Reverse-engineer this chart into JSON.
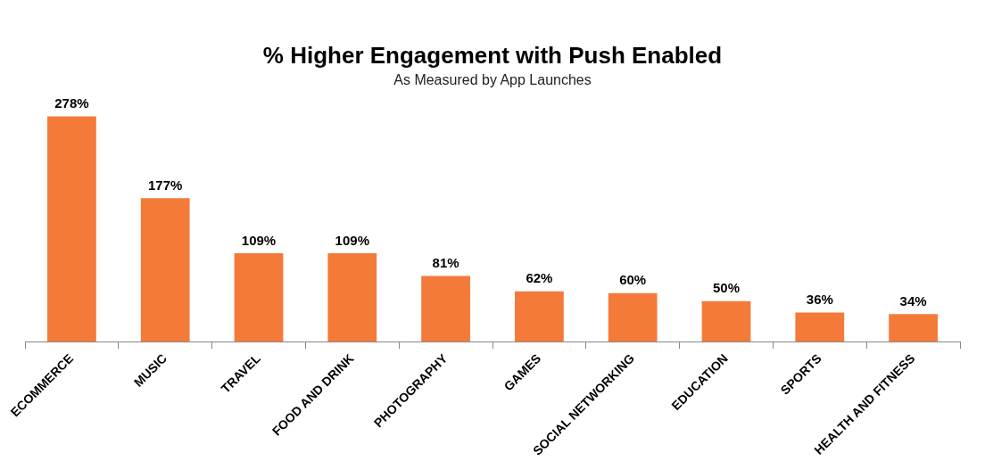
{
  "chart_data": {
    "type": "bar",
    "title": "% Higher Engagement with Push Enabled",
    "subtitle": "As Measured by App Launches",
    "categories": [
      "ECOMMERCE",
      "MUSIC",
      "TRAVEL",
      "FOOD AND DRINK",
      "PHOTOGRAPHY",
      "GAMES",
      "SOCIAL NETWORKING",
      "EDUCATION",
      "SPORTS",
      "HEALTH AND FITNESS"
    ],
    "values": [
      278,
      177,
      109,
      109,
      81,
      62,
      60,
      50,
      36,
      34
    ],
    "value_labels": [
      "278%",
      "177%",
      "109%",
      "109%",
      "81%",
      "62%",
      "60%",
      "50%",
      "36%",
      "34%"
    ],
    "color": "#f47a3a"
  }
}
